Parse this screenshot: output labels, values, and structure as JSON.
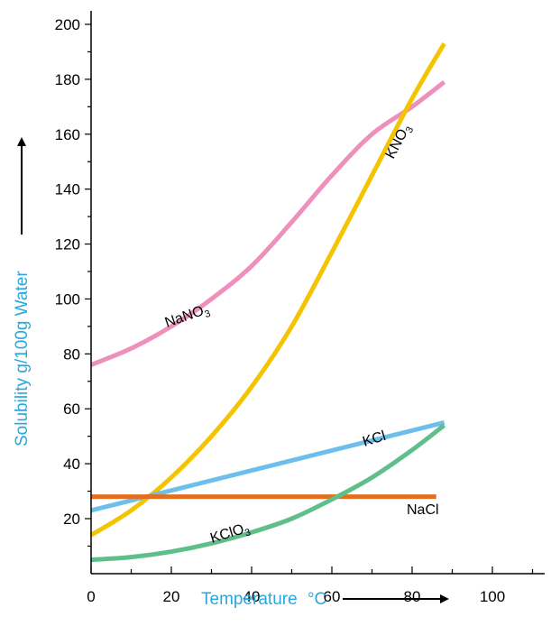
{
  "chart_data": {
    "type": "line",
    "xlabel": "Temperature",
    "xlabel_unit": "°C",
    "ylabel": "Solubility g/100g Water",
    "xlim": [
      0,
      110
    ],
    "ylim": [
      0,
      205
    ],
    "x_ticks": [
      0,
      20,
      40,
      60,
      80,
      100
    ],
    "y_ticks": [
      20,
      40,
      60,
      80,
      100,
      120,
      140,
      160,
      180,
      200
    ],
    "grid": false,
    "axis_title_color": "#2aa7dc",
    "series": [
      {
        "name": "NaNO3",
        "label_main": "NaNO",
        "label_sub": "3",
        "color": "#ee8fbc",
        "x": [
          0,
          10,
          20,
          30,
          40,
          50,
          60,
          70,
          80,
          88
        ],
        "y": [
          76,
          82,
          90,
          100,
          112,
          128,
          145,
          160,
          170,
          179
        ]
      },
      {
        "name": "KNO3",
        "label_main": "KNO",
        "label_sub": "3",
        "color": "#f5c400",
        "x": [
          0,
          10,
          20,
          30,
          40,
          50,
          60,
          70,
          80,
          88
        ],
        "y": [
          14,
          23,
          35,
          50,
          68,
          90,
          117,
          145,
          173,
          193
        ]
      },
      {
        "name": "KCl",
        "label_main": "KCl",
        "label_sub": "",
        "color": "#6cbfea",
        "x": [
          0,
          88
        ],
        "y": [
          23,
          55
        ]
      },
      {
        "name": "NaCl",
        "label_main": "NaCl",
        "label_sub": "",
        "color": "#e36f1e",
        "x": [
          0,
          86
        ],
        "y": [
          28,
          28
        ]
      },
      {
        "name": "KClO3",
        "label_main": "KClO",
        "label_sub": "3",
        "color": "#5fbf8a",
        "x": [
          0,
          10,
          20,
          30,
          40,
          50,
          60,
          70,
          80,
          88
        ],
        "y": [
          5,
          6,
          8,
          11,
          15,
          20,
          27,
          35,
          45,
          54
        ]
      }
    ]
  }
}
